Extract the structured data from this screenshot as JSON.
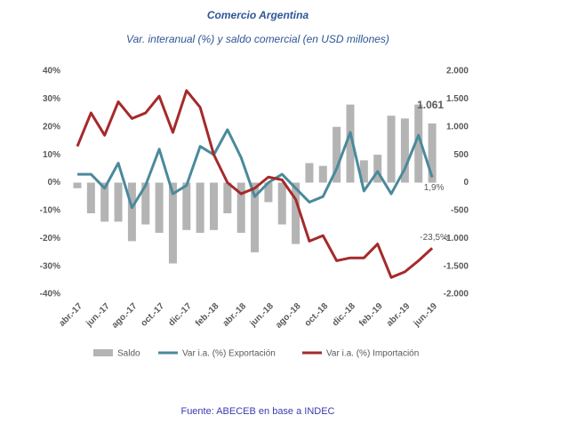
{
  "chart_data": {
    "type": "combo",
    "title": "Comercio Argentina",
    "subtitle": "Var. interanual (%) y saldo comercial (en USD millones)",
    "source": "Fuente: ABECEB en base a INDEC",
    "categories": [
      "abr.-17",
      null,
      "jun.-17",
      null,
      "ago.-17",
      null,
      "oct.-17",
      null,
      "dic.-17",
      null,
      "feb.-18",
      null,
      "abr.-18",
      null,
      "jun.-18",
      null,
      "ago.-18",
      null,
      "oct.-18",
      null,
      "dic.-18",
      null,
      "feb.-19",
      null,
      "abr.-19",
      null,
      "jun.-19"
    ],
    "series": [
      {
        "name": "Saldo",
        "type": "bar",
        "axis": "y2",
        "color": "#b4b4b4",
        "values": [
          -100,
          -550,
          -700,
          -700,
          -1050,
          -750,
          -900,
          -1450,
          -850,
          -900,
          -850,
          -550,
          -900,
          -1250,
          -350,
          -750,
          -1100,
          350,
          300,
          1000,
          1400,
          400,
          500,
          1200,
          1150,
          1400,
          1061
        ],
        "value_labels": [
          null,
          null,
          null,
          null,
          null,
          null,
          null,
          null,
          null,
          null,
          null,
          null,
          null,
          null,
          null,
          null,
          null,
          null,
          null,
          null,
          null,
          null,
          null,
          null,
          null,
          null,
          "1.061"
        ]
      },
      {
        "name": "Var i.a. (%) Exportación",
        "type": "line",
        "color": "#4a8a9c",
        "values": [
          3,
          3,
          -2,
          7,
          -9,
          -1,
          12,
          -4,
          -1,
          13,
          10,
          19,
          9,
          -5,
          0,
          3,
          -2,
          -7,
          -5,
          5,
          18,
          -3,
          4,
          -4,
          5,
          17,
          1.9
        ],
        "value_labels": [
          null,
          null,
          null,
          null,
          null,
          null,
          null,
          null,
          null,
          null,
          null,
          null,
          null,
          null,
          null,
          null,
          null,
          null,
          null,
          null,
          null,
          null,
          null,
          null,
          null,
          null,
          "1,9%"
        ]
      },
      {
        "name": "Var i.a. (%) Importación",
        "type": "line",
        "color": "#a52a2a",
        "values": [
          13,
          25,
          17,
          29,
          23,
          25,
          31,
          18,
          33,
          27,
          10,
          0,
          -4,
          -2,
          2,
          1,
          -6,
          -21,
          -19,
          -28,
          -27,
          -27,
          -22,
          -34,
          -32,
          -28,
          -23.5
        ],
        "value_labels": [
          null,
          null,
          null,
          null,
          null,
          null,
          null,
          null,
          null,
          null,
          null,
          null,
          null,
          null,
          null,
          null,
          null,
          null,
          null,
          null,
          null,
          null,
          null,
          null,
          null,
          null,
          "-23,5%"
        ]
      }
    ],
    "ylim": [
      -40,
      40
    ],
    "yticks": [
      {
        "value": 40,
        "label": "40%"
      },
      {
        "value": 30,
        "label": "30%"
      },
      {
        "value": 20,
        "label": "20%"
      },
      {
        "value": 10,
        "label": "10%"
      },
      {
        "value": 0,
        "label": "0%"
      },
      {
        "value": -10,
        "label": "-10%"
      },
      {
        "value": -20,
        "label": "-20%"
      },
      {
        "value": -30,
        "label": "-30%"
      },
      {
        "value": -40,
        "label": "-40%"
      }
    ],
    "y2lim": [
      -2000,
      2000
    ],
    "y2ticks": [
      {
        "value": 2000,
        "label": "2.000"
      },
      {
        "value": 1500,
        "label": "1.500"
      },
      {
        "value": 1000,
        "label": "1.000"
      },
      {
        "value": 500,
        "label": "500"
      },
      0,
      {
        "value": -500,
        "label": "-500"
      },
      {
        "value": -1000,
        "label": "-1.000"
      },
      {
        "value": -1500,
        "label": "-1.500"
      },
      {
        "value": -2000,
        "label": "-2.000"
      }
    ],
    "legend": "bottom"
  }
}
